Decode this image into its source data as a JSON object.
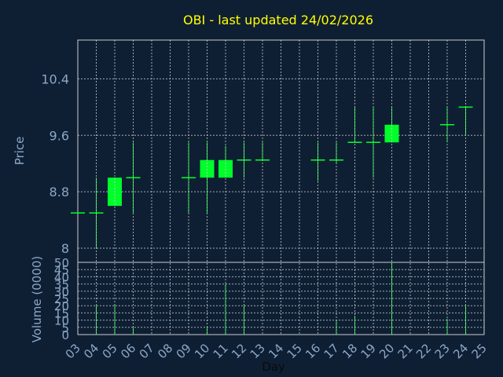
{
  "chart_data": {
    "type": "candlestick",
    "title": "OBI - last updated 24/02/2026",
    "xlabel": "Day",
    "ylabel_price": "Price",
    "ylabel_volume": "Volume (0000)",
    "x_ticks": [
      "03",
      "04",
      "05",
      "06",
      "07",
      "08",
      "09",
      "10",
      "11",
      "12",
      "13",
      "14",
      "15",
      "16",
      "17",
      "18",
      "19",
      "20",
      "21",
      "22",
      "23",
      "24",
      "25"
    ],
    "price_ticks": [
      "8",
      "8.8",
      "9.6",
      "10.4"
    ],
    "volume_ticks": [
      "0",
      "5",
      "10",
      "15",
      "20",
      "25",
      "30",
      "35",
      "40",
      "45",
      "50"
    ],
    "price_range": [
      7.8,
      10.95
    ],
    "volume_range": [
      0,
      50
    ],
    "grid": true,
    "colors": {
      "background": "#0f1f33",
      "candle": "#00ff2a",
      "grid": "#c8ccd2",
      "title": "#ffff00",
      "axis_text": "#8aa8c8"
    },
    "candles": [
      {
        "day": "03",
        "open": 8.5,
        "high": 8.5,
        "low": 8.5,
        "close": 8.5
      },
      {
        "day": "04",
        "open": 8.5,
        "high": 9.0,
        "low": 8.0,
        "close": 8.5
      },
      {
        "day": "05",
        "open": 8.6,
        "high": 9.0,
        "low": 8.6,
        "close": 9.0
      },
      {
        "day": "06",
        "open": 9.0,
        "high": 9.5,
        "low": 8.5,
        "close": 9.0
      },
      {
        "day": "09",
        "open": 9.0,
        "high": 9.5,
        "low": 8.5,
        "close": 9.0
      },
      {
        "day": "10",
        "open": 9.0,
        "high": 9.5,
        "low": 8.5,
        "close": 9.25
      },
      {
        "day": "11",
        "open": 9.0,
        "high": 9.45,
        "low": 9.0,
        "close": 9.25
      },
      {
        "day": "12",
        "open": 9.25,
        "high": 9.5,
        "low": 9.0,
        "close": 9.25
      },
      {
        "day": "13",
        "open": 9.25,
        "high": 9.5,
        "low": 9.25,
        "close": 9.25
      },
      {
        "day": "16",
        "open": 9.25,
        "high": 9.5,
        "low": 8.95,
        "close": 9.25
      },
      {
        "day": "17",
        "open": 9.25,
        "high": 9.5,
        "low": 9.2,
        "close": 9.25
      },
      {
        "day": "18",
        "open": 9.5,
        "high": 10.0,
        "low": 9.5,
        "close": 9.5
      },
      {
        "day": "19",
        "open": 9.5,
        "high": 10.0,
        "low": 9.0,
        "close": 9.5
      },
      {
        "day": "20",
        "open": 9.5,
        "high": 10.0,
        "low": 9.5,
        "close": 9.75
      },
      {
        "day": "23",
        "open": 9.75,
        "high": 10.0,
        "low": 9.5,
        "close": 9.75
      },
      {
        "day": "24",
        "open": 10.0,
        "high": 10.0,
        "low": 9.6,
        "close": 10.0
      }
    ],
    "volumes": [
      {
        "day": "04",
        "value": 20
      },
      {
        "day": "05",
        "value": 21
      },
      {
        "day": "06",
        "value": 5
      },
      {
        "day": "10",
        "value": 5
      },
      {
        "day": "11",
        "value": 35
      },
      {
        "day": "12",
        "value": 20
      },
      {
        "day": "17",
        "value": 10
      },
      {
        "day": "18",
        "value": 13
      },
      {
        "day": "20",
        "value": 50
      },
      {
        "day": "23",
        "value": 11
      },
      {
        "day": "24",
        "value": 20
      }
    ]
  }
}
